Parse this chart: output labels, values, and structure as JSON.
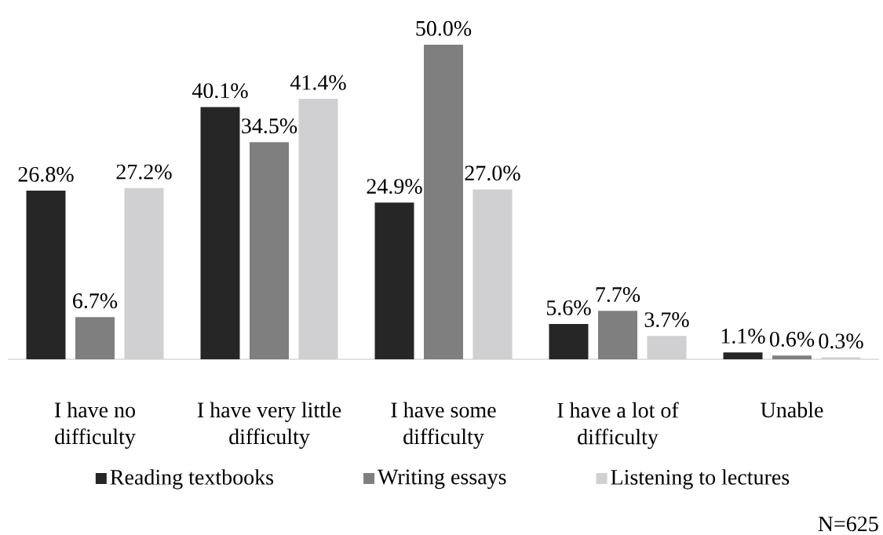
{
  "chart_data": {
    "type": "bar",
    "categories": [
      "I have no difficulty",
      "I have very little difficulty",
      "I have some difficulty",
      "I have a lot of difficulty",
      "Unable"
    ],
    "series": [
      {
        "name": "Reading textbooks",
        "color": "#262626",
        "values": [
          26.8,
          40.1,
          24.9,
          5.6,
          1.1
        ],
        "value_labels": [
          "26.8%",
          "40.1%",
          "24.9%",
          "5.6%",
          "1.1%"
        ]
      },
      {
        "name": "Writing essays",
        "color": "#7f7f7f",
        "values": [
          6.7,
          34.5,
          50.0,
          7.7,
          0.6
        ],
        "value_labels": [
          "6.7%",
          "34.5%",
          "50.0%",
          "7.7%",
          "0.6%"
        ]
      },
      {
        "name": "Listening to lectures",
        "color": "#d0cfd1",
        "values": [
          27.2,
          41.4,
          27.0,
          3.7,
          0.3
        ],
        "value_labels": [
          "27.2%",
          "41.4%",
          "27.0%",
          "3.7%",
          "0.3%"
        ]
      }
    ],
    "legend": "bottom",
    "annotations": [
      "N=625"
    ]
  }
}
